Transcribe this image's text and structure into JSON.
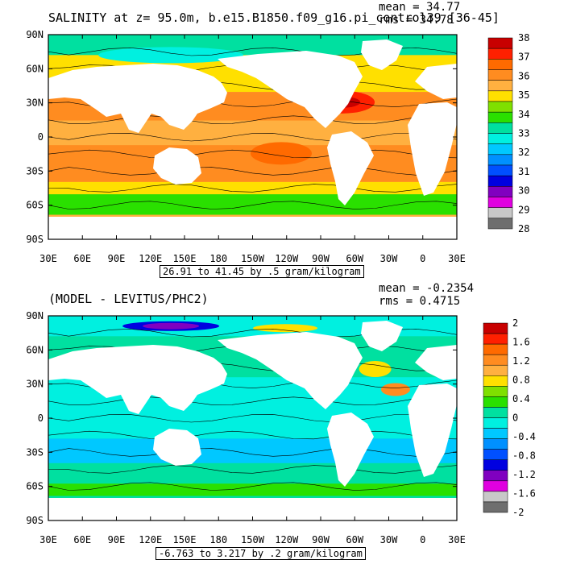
{
  "panels": [
    {
      "id": "top",
      "title": "SALINITY at z=  95.0m, b.e15.B1850.f09_g16.pi_control39 [36-45]",
      "mean_label": "mean = 34.77",
      "rms_label": "rms = 34.78",
      "contour_info": "26.91 to 41.45 by .5 gram/kilogram",
      "colorbar_labels": [
        "38",
        "37",
        "36",
        "35",
        "34",
        "33",
        "32",
        "31",
        "30",
        "29",
        "28"
      ],
      "colorbar_colors": [
        "#c80000",
        "#ff2000",
        "#ff6a00",
        "#ff8c20",
        "#ffb040",
        "#ffe000",
        "#7fe000",
        "#2ae000",
        "#00e0a0",
        "#00f0e0",
        "#00c8ff",
        "#0090ff",
        "#0050ff",
        "#0000e0",
        "#8000c0",
        "#e000e0",
        "#c8c8c8",
        "#6e6e6e"
      ]
    },
    {
      "id": "bottom",
      "title": "(MODEL - LEVITUS/PHC2)",
      "mean_label": "mean = -0.2354",
      "rms_label": "rms = 0.4715",
      "contour_info": "-6.763 to 3.217 by .2 gram/kilogram",
      "colorbar_labels": [
        "2",
        "1.6",
        "1.2",
        "0.8",
        "0.4",
        "0",
        "-0.4",
        "-0.8",
        "-1.2",
        "-1.6",
        "-2"
      ],
      "colorbar_colors": [
        "#c80000",
        "#ff2000",
        "#ff6a00",
        "#ff8c20",
        "#ffb040",
        "#ffe000",
        "#7fe000",
        "#2ae000",
        "#00e0a0",
        "#00f0e0",
        "#00c8ff",
        "#0090ff",
        "#0050ff",
        "#0000e0",
        "#8000c0",
        "#e000e0",
        "#c8c8c8",
        "#6e6e6e"
      ]
    }
  ],
  "chart_data": [
    {
      "type": "heatmap",
      "title": "SALINITY at z=  95.0m, b.e15.B1850.f09_g16.pi_control39 [36-45]",
      "x_tick_labels": [
        "30E",
        "60E",
        "90E",
        "120E",
        "150E",
        "180",
        "150W",
        "120W",
        "90W",
        "60W",
        "30W",
        "0",
        "30E"
      ],
      "y_tick_labels": [
        "90N",
        "60N",
        "30N",
        "0",
        "30S",
        "60S",
        "90S"
      ],
      "xlim": [
        30,
        390
      ],
      "ylim": [
        -90,
        90
      ],
      "colorbar_levels": [
        28,
        29,
        30,
        31,
        32,
        33,
        34,
        35,
        36,
        37,
        38
      ],
      "mean": 34.77,
      "rms": 34.78,
      "contour_min": 26.91,
      "contour_max": 41.45,
      "contour_interval": 0.5,
      "units": "gram/kilogram"
    },
    {
      "type": "heatmap",
      "title": "(MODEL - LEVITUS/PHC2)",
      "x_tick_labels": [
        "30E",
        "60E",
        "90E",
        "120E",
        "150E",
        "180",
        "150W",
        "120W",
        "90W",
        "60W",
        "30W",
        "0",
        "30E"
      ],
      "y_tick_labels": [
        "90N",
        "60N",
        "30N",
        "0",
        "30S",
        "60S",
        "90S"
      ],
      "xlim": [
        30,
        390
      ],
      "ylim": [
        -90,
        90
      ],
      "colorbar_levels": [
        -2,
        -1.6,
        -1.2,
        -0.8,
        -0.4,
        0,
        0.4,
        0.8,
        1.2,
        1.6,
        2
      ],
      "mean": -0.2354,
      "rms": 0.4715,
      "contour_min": -6.763,
      "contour_max": 3.217,
      "contour_interval": 0.2,
      "units": "gram/kilogram"
    }
  ]
}
